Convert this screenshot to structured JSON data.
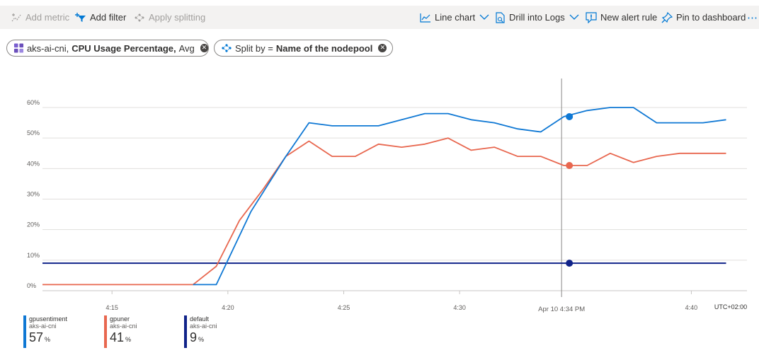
{
  "toolbar": {
    "add_metric": "Add metric",
    "add_filter": "Add filter",
    "apply_splitting": "Apply splitting",
    "line_chart": "Line chart",
    "drill_into_logs": "Drill into Logs",
    "new_alert_rule": "New alert rule",
    "pin_to_dashboard": "Pin to dashboard",
    "more": "⋯"
  },
  "pills": {
    "metric": {
      "resource": "aks-ai-cni,",
      "metric": "CPU Usage Percentage,",
      "agg": "Avg"
    },
    "split": {
      "prefix": "Split by =",
      "value": "Name of the nodepool"
    }
  },
  "colors": {
    "gpusentiment": "#0f78d4",
    "gpuner": "#e8674f",
    "default": "#102389",
    "accent": "#0078d4"
  },
  "chart_data": {
    "type": "line",
    "x_ticks": [
      "4:15",
      "4:20",
      "4:25",
      "4:30",
      "4:40"
    ],
    "cursor_label": "Apr 10 4:34 PM",
    "timezone_label": "UTC+02:00",
    "y_ticks": [
      "0%",
      "10%",
      "20%",
      "30%",
      "40%",
      "50%",
      "60%"
    ],
    "ylim": [
      0,
      60
    ],
    "grid": true,
    "cursor_time": 34.4,
    "series": [
      {
        "name": "gpusentiment",
        "subtitle": "aks-ai-cni",
        "current": "57",
        "unit": "%",
        "x": [
          18.5,
          19.5,
          21,
          22.5,
          23.5,
          24.5,
          25.5,
          26.5,
          27.5,
          28.5,
          29.5,
          30.5,
          31.5,
          32.5,
          33.5,
          34.5,
          35.5,
          36.5,
          37.5,
          38.5,
          39.5,
          40.5,
          41.5
        ],
        "y": [
          2,
          2,
          26,
          44,
          55,
          54,
          54,
          54,
          56,
          58,
          58,
          56,
          55,
          53,
          52,
          57,
          59,
          60,
          60,
          55,
          55,
          55,
          56
        ]
      },
      {
        "name": "gpuner",
        "subtitle": "aks-ai-cni",
        "current": "41",
        "unit": "%",
        "x": [
          12,
          13,
          14,
          15,
          16,
          17,
          18,
          18.5,
          19.5,
          20.5,
          21.5,
          22.5,
          23.5,
          24.5,
          25.5,
          26.5,
          27.5,
          28.5,
          29.5,
          30.5,
          31.5,
          32.5,
          33.5,
          34.5,
          35.5,
          36.5,
          37.5,
          38.5,
          39.5,
          40.5,
          41.5
        ],
        "y": [
          2,
          2,
          2,
          2,
          2,
          2,
          2,
          2,
          8,
          23,
          33,
          44,
          49,
          44,
          44,
          48,
          47,
          48,
          50,
          46,
          47,
          44,
          44,
          41,
          41,
          45,
          42,
          44,
          45,
          45,
          45
        ]
      },
      {
        "name": "default",
        "subtitle": "aks-ai-cni",
        "current": "9",
        "unit": "%",
        "x": [
          12,
          41.5
        ],
        "y": [
          9,
          9
        ]
      }
    ]
  }
}
